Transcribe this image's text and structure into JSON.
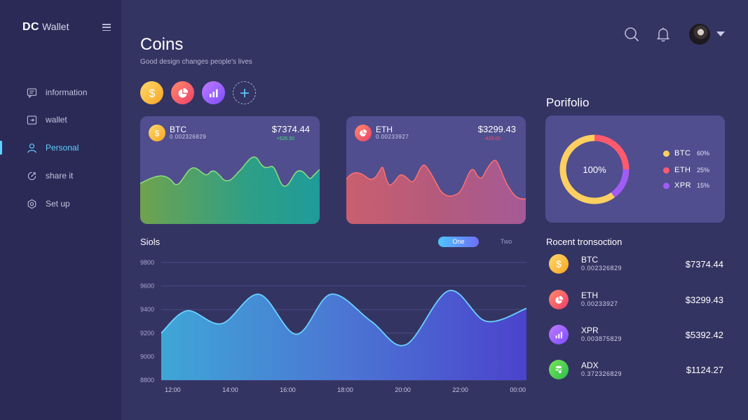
{
  "app": {
    "brand_bold": "DC",
    "brand_light": "Wallet"
  },
  "sidebar": {
    "items": [
      {
        "label": "information",
        "icon": "message-icon",
        "active": false
      },
      {
        "label": "wallet",
        "icon": "wallet-icon",
        "active": false
      },
      {
        "label": "Personal",
        "icon": "user-icon",
        "active": true
      },
      {
        "label": "share it",
        "icon": "share-icon",
        "active": false
      },
      {
        "label": "Set up",
        "icon": "gear-icon",
        "active": false
      }
    ]
  },
  "header": {
    "title": "Coins",
    "subtitle": "Good design changes people's lives"
  },
  "quick_coins": [
    {
      "icon": "dollar-icon",
      "color": "#f6a623"
    },
    {
      "icon": "pie-icon",
      "color": "#ef3f6b"
    },
    {
      "icon": "bar-chart-icon",
      "color": "#7b4dff"
    },
    {
      "icon": "plus-icon",
      "color": "#a9a9d8"
    }
  ],
  "cards": [
    {
      "name": "BTC",
      "sub": "0.002326829",
      "price": "$7374.44",
      "change": "+526.50",
      "change_color": "#4be37a"
    },
    {
      "name": "ETH",
      "sub": "0.00233927",
      "price": "$3299.43",
      "change": "-429.00",
      "change_color": "#ff4b63"
    }
  ],
  "siols": {
    "title": "Siols",
    "toggle_one": "One",
    "toggle_two": "Two"
  },
  "chart_data": {
    "type": "area",
    "title": "",
    "x": [
      "12:00",
      "14:00",
      "16:00",
      "18:00",
      "20:00",
      "22:00",
      "00:00"
    ],
    "ylim": [
      8800,
      9800
    ],
    "yticks": [
      9800,
      9600,
      9400,
      9200,
      9000,
      8800
    ],
    "series": [
      {
        "name": "",
        "values": [
          [
            11.6,
            9200
          ],
          [
            12.5,
            9390
          ],
          [
            13.7,
            9280
          ],
          [
            15.0,
            9530
          ],
          [
            16.3,
            9190
          ],
          [
            17.5,
            9530
          ],
          [
            18.9,
            9300
          ],
          [
            20.1,
            9100
          ],
          [
            21.6,
            9560
          ],
          [
            22.9,
            9300
          ],
          [
            24.3,
            9410
          ]
        ]
      }
    ]
  },
  "portfolio": {
    "title": "Porifolio",
    "center_label": "100%",
    "chart_data": {
      "type": "pie",
      "slices": [
        {
          "name": "BTC",
          "value": 60,
          "pct": "60%",
          "color": "#ffd060"
        },
        {
          "name": "ETH",
          "value": 25,
          "pct": "25%",
          "color": "#ff5a6e"
        },
        {
          "name": "XPR",
          "value": 15,
          "pct": "15%",
          "color": "#a25cf6"
        }
      ]
    }
  },
  "transactions": {
    "title": "Rocent tronsoction",
    "rows": [
      {
        "name": "BTC",
        "sub": "0.002326829",
        "amount": "$7374.44",
        "icon": "dollar-icon"
      },
      {
        "name": "ETH",
        "sub": "0.00233927",
        "amount": "$3299.43",
        "icon": "pie-icon"
      },
      {
        "name": "XPR",
        "sub": "0.003875829",
        "amount": "$5392.42",
        "icon": "bar-chart-icon"
      },
      {
        "name": "ADX",
        "sub": "0.372326829",
        "amount": "$1124.27",
        "icon": "coin-stack-icon"
      }
    ]
  }
}
